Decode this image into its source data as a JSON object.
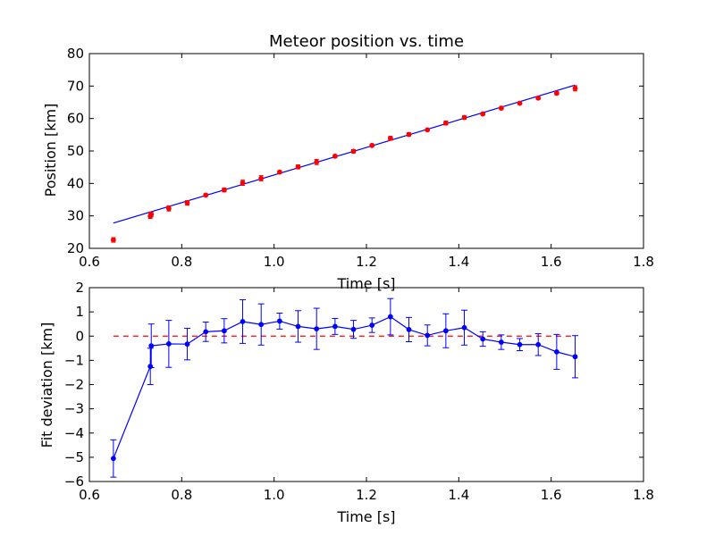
{
  "colors": {
    "fit_line": "#0000ff",
    "measurements": "#ff0000",
    "deviation": "#0000ff",
    "zero_line": "#ff0000",
    "axes": "#000000",
    "background": "#ffffff"
  },
  "chart_data": [
    {
      "type": "scatter",
      "title": "Meteor position vs. time",
      "xlabel": "Time [s]",
      "ylabel": "Position [km]",
      "xlim": [
        0.6,
        1.8
      ],
      "ylim": [
        20,
        80
      ],
      "xticks": [
        "0.6",
        "0.8",
        "1.0",
        "1.2",
        "1.4",
        "1.6",
        "1.8"
      ],
      "yticks": [
        "20",
        "30",
        "40",
        "50",
        "60",
        "70",
        "80"
      ],
      "grid": false,
      "legend": "none",
      "series": [
        {
          "kind": "line",
          "color_key": "fit_line",
          "x": [
            0.652,
            1.652
          ],
          "y": [
            27.8,
            70.3
          ]
        },
        {
          "kind": "errorbar-points",
          "color_key": "measurements",
          "x": [
            0.652,
            0.732,
            0.734,
            0.772,
            0.812,
            0.852,
            0.892,
            0.932,
            0.972,
            1.012,
            1.052,
            1.092,
            1.132,
            1.172,
            1.212,
            1.252,
            1.292,
            1.332,
            1.372,
            1.412,
            1.452,
            1.492,
            1.532,
            1.572,
            1.612,
            1.652
          ],
          "y": [
            22.6,
            29.9,
            30.5,
            32.3,
            34.0,
            36.4,
            38.0,
            40.2,
            41.6,
            43.5,
            45.1,
            46.6,
            48.4,
            49.9,
            51.7,
            53.9,
            55.1,
            56.5,
            58.6,
            60.3,
            61.4,
            63.2,
            64.7,
            66.3,
            67.8,
            69.3
          ],
          "yerr": [
            0.7,
            0.7,
            0.7,
            0.8,
            0.7,
            0.4,
            0.6,
            0.8,
            0.8,
            0.4,
            0.6,
            0.8,
            0.4,
            0.5,
            0.3,
            0.6,
            0.5,
            0.3,
            0.6,
            0.5,
            0.3,
            0.4,
            0.3,
            0.4,
            0.5,
            0.8
          ]
        }
      ]
    },
    {
      "type": "line",
      "xlabel": "Time [s]",
      "ylabel": "Fit deviation [km]",
      "xlim": [
        0.6,
        1.8
      ],
      "ylim": [
        -6,
        2
      ],
      "xticks": [
        "0.6",
        "0.8",
        "1.0",
        "1.2",
        "1.4",
        "1.6",
        "1.8"
      ],
      "yticks": [
        "−6",
        "−5",
        "−4",
        "−3",
        "−2",
        "−1",
        "0",
        "1",
        "2"
      ],
      "grid": false,
      "legend": "none",
      "series": [
        {
          "kind": "dashed-line",
          "color_key": "zero_line",
          "x": [
            0.652,
            1.652
          ],
          "y": [
            0,
            0
          ]
        },
        {
          "kind": "line-markers-errorbars",
          "color_key": "deviation",
          "x": [
            0.652,
            0.732,
            0.734,
            0.772,
            0.812,
            0.852,
            0.892,
            0.932,
            0.972,
            1.012,
            1.052,
            1.092,
            1.132,
            1.172,
            1.212,
            1.252,
            1.292,
            1.332,
            1.372,
            1.412,
            1.452,
            1.492,
            1.532,
            1.572,
            1.612,
            1.652
          ],
          "y": [
            -5.05,
            -1.25,
            -0.4,
            -0.32,
            -0.33,
            0.18,
            0.22,
            0.6,
            0.48,
            0.62,
            0.4,
            0.3,
            0.4,
            0.28,
            0.45,
            0.8,
            0.27,
            0.03,
            0.22,
            0.35,
            -0.12,
            -0.25,
            -0.35,
            -0.35,
            -0.65,
            -0.85
          ],
          "yerr": [
            0.77,
            0.75,
            0.9,
            0.97,
            0.65,
            0.4,
            0.5,
            0.9,
            0.85,
            0.33,
            0.65,
            0.85,
            0.33,
            0.37,
            0.3,
            0.75,
            0.5,
            0.43,
            0.7,
            0.72,
            0.3,
            0.3,
            0.25,
            0.45,
            0.72,
            0.87
          ]
        }
      ]
    }
  ]
}
